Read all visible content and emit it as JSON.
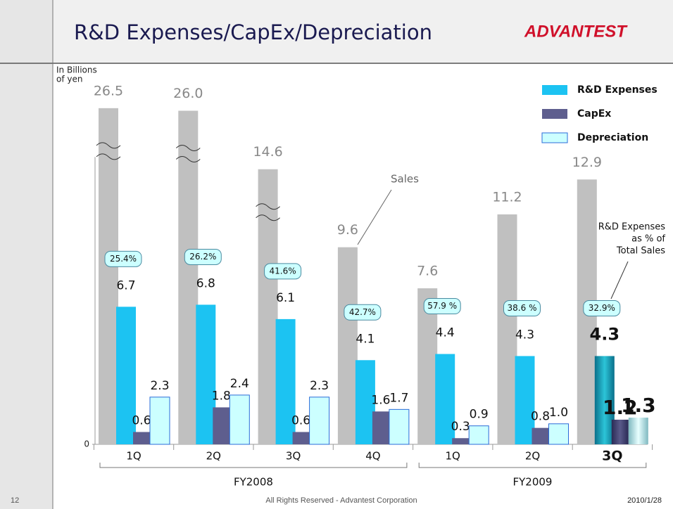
{
  "slide": {
    "title": "R&D Expenses/CapEx/Depreciation",
    "logo": "ADVANTEST",
    "page_number": "12",
    "copyright": "All Rights Reserved - Advantest Corporation",
    "date": "2010/1/28"
  },
  "chart_data": {
    "type": "bar",
    "y_label_lines": [
      "In Billions",
      "of yen"
    ],
    "categories": [
      "1Q",
      "2Q",
      "3Q",
      "4Q",
      "1Q",
      "2Q",
      "3Q"
    ],
    "groups": [
      {
        "name": "FY2008",
        "span": 4
      },
      {
        "name": "FY2009",
        "span": 3
      }
    ],
    "highlight_index": 6,
    "axis_break": true,
    "series": [
      {
        "name": "Sales",
        "color": "#c0c0c0",
        "values": [
          26.5,
          26.0,
          14.6,
          9.6,
          7.6,
          11.2,
          12.9
        ],
        "value_labels": [
          "26.5",
          "26.0",
          "14.6",
          "9.6",
          "7.6",
          "11.2",
          "12.9"
        ]
      },
      {
        "name": "R&D Expenses",
        "color": "#1cc3f2",
        "values": [
          6.7,
          6.8,
          6.1,
          4.1,
          4.4,
          4.3,
          4.3
        ],
        "value_labels": [
          "6.7",
          "6.8",
          "6.1",
          "4.1",
          "4.4",
          "4.3",
          "4.3"
        ]
      },
      {
        "name": "CapEx",
        "color": "#5e5e8e",
        "values": [
          0.6,
          1.8,
          0.6,
          1.6,
          0.3,
          0.8,
          1.2
        ],
        "value_labels": [
          "0.6",
          "1.8",
          "0.6",
          "1.6",
          "0.3",
          "0.8",
          "1.2"
        ]
      },
      {
        "name": "Depreciation",
        "color": "#ccffff",
        "values": [
          2.3,
          2.4,
          2.3,
          1.7,
          0.9,
          1.0,
          1.3
        ],
        "value_labels": [
          "2.3",
          "2.4",
          "2.3",
          "1.7",
          "0.9",
          "1.0",
          "1.3"
        ]
      }
    ],
    "ratio": {
      "label_lines": [
        "R&D Expenses",
        "as % of",
        "Total Sales"
      ],
      "values": [
        25.4,
        26.2,
        41.6,
        42.7,
        57.9,
        38.6,
        32.9
      ],
      "value_labels": [
        "25.4%",
        "26.2%",
        "41.6%",
        "42.7%",
        "57.9 %",
        "38.6 %",
        "32.9%"
      ]
    },
    "ylim": [
      0,
      17
    ],
    "yticks": [
      0
    ],
    "legend": "top-right"
  }
}
